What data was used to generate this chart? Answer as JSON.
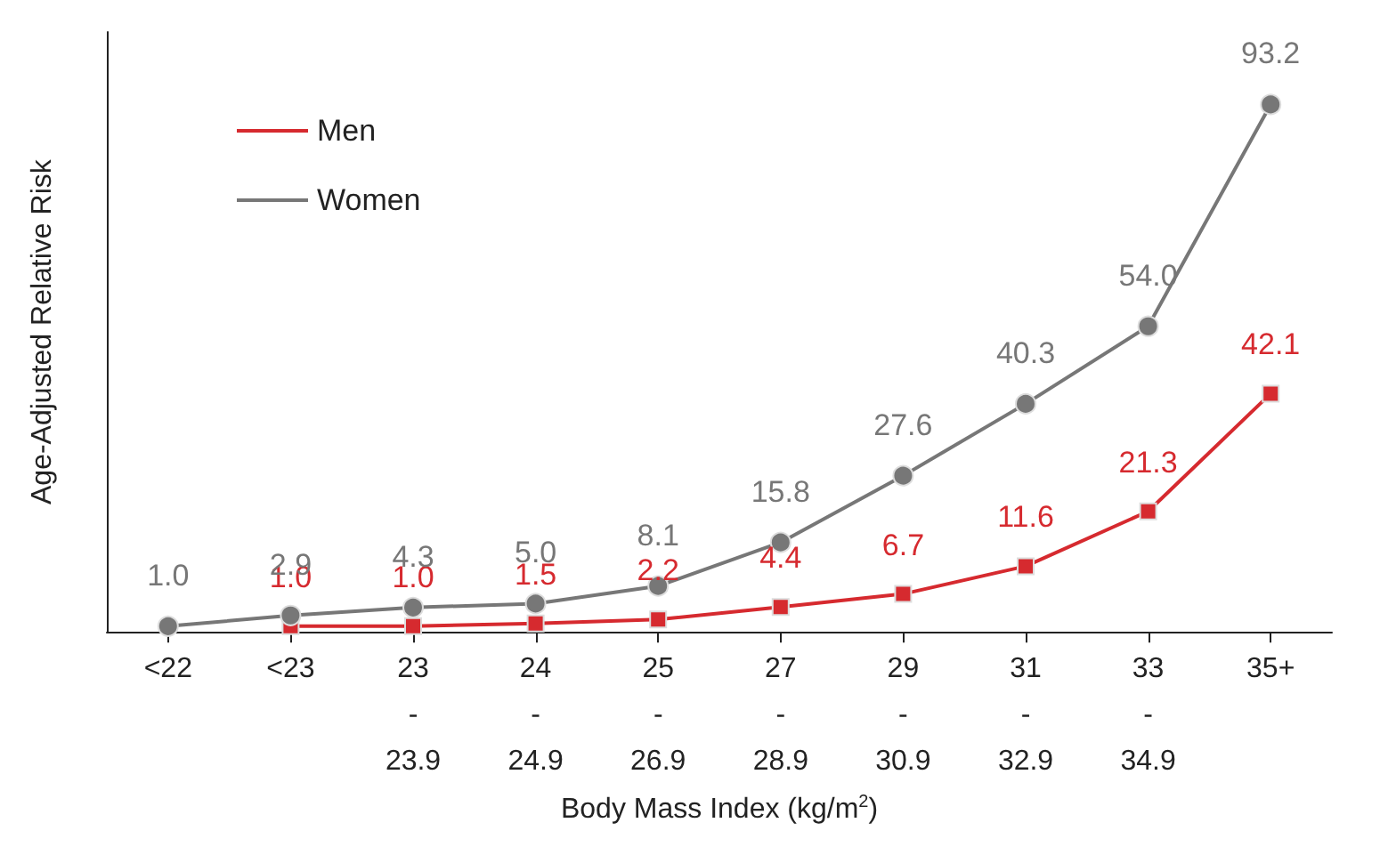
{
  "chart_data": {
    "type": "line",
    "xlabel": "Body Mass Index (kg/m$^{2}$)",
    "ylabel": "Age-Adjusted Relative Risk",
    "categories": [
      "<22",
      "<23",
      "23 - 23.9",
      "24 - 24.9",
      "25 - 26.9",
      "27 - 28.9",
      "29 - 30.9",
      "31 - 32.9",
      "33 - 34.9",
      "35+"
    ],
    "series": [
      {
        "name": "Men",
        "color": "#d62a2f",
        "marker": "square",
        "values": [
          null,
          1.0,
          1.0,
          1.5,
          2.2,
          4.4,
          6.7,
          11.6,
          21.3,
          42.1
        ],
        "value_labels": [
          null,
          "1.0",
          "1.0",
          "1.5",
          "2.2",
          "4.4",
          "6.7",
          "11.6",
          "21.3",
          "42.1"
        ]
      },
      {
        "name": "Women",
        "color": "#777777",
        "marker": "circle",
        "values": [
          1.0,
          2.9,
          4.3,
          5.0,
          8.1,
          15.8,
          27.6,
          40.3,
          54.0,
          93.2
        ],
        "value_labels": [
          "1.0",
          "2.9",
          "4.3",
          "5.0",
          "8.1",
          "15.8",
          "27.6",
          "40.3",
          "54.0",
          "93.2"
        ]
      }
    ],
    "ylim": [
      0,
      106
    ],
    "tick_labels": "x",
    "grid": false,
    "legend": "top left",
    "line_style": "solid"
  }
}
